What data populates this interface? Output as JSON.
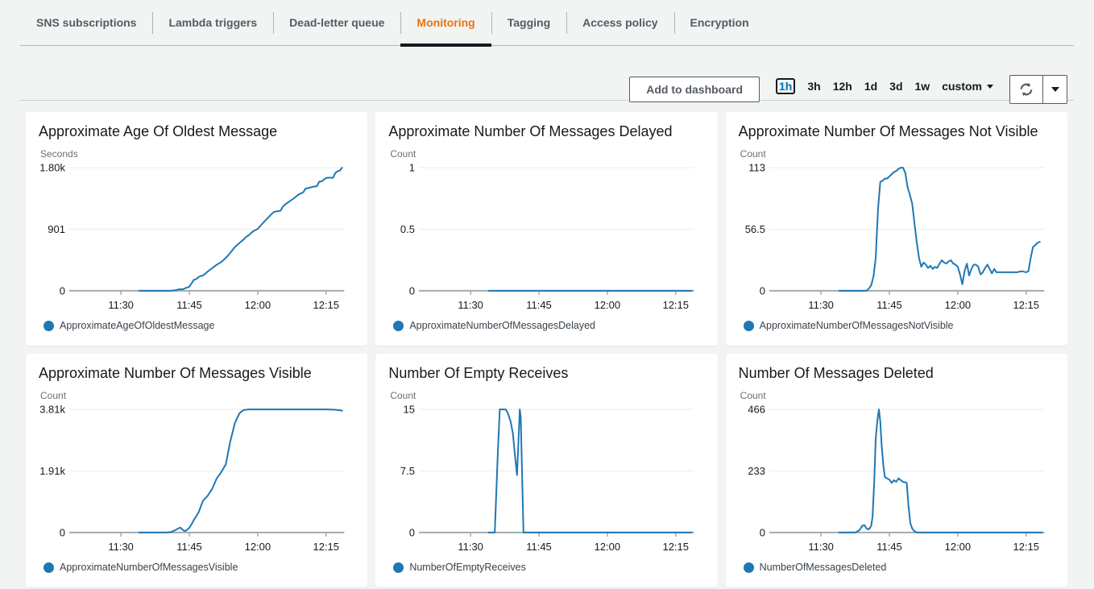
{
  "tabs": [
    {
      "label": "SNS subscriptions",
      "active": false
    },
    {
      "label": "Lambda triggers",
      "active": false
    },
    {
      "label": "Dead-letter queue",
      "active": false
    },
    {
      "label": "Monitoring",
      "active": true
    },
    {
      "label": "Tagging",
      "active": false
    },
    {
      "label": "Access policy",
      "active": false
    },
    {
      "label": "Encryption",
      "active": false
    }
  ],
  "toolbar": {
    "add_to_dashboard_label": "Add to dashboard",
    "time_ranges": [
      {
        "label": "1h",
        "selected": true
      },
      {
        "label": "3h",
        "selected": false
      },
      {
        "label": "12h",
        "selected": false
      },
      {
        "label": "1d",
        "selected": false
      },
      {
        "label": "3d",
        "selected": false
      },
      {
        "label": "1w",
        "selected": false
      }
    ],
    "custom_label": "custom",
    "refresh_icon": "refresh-icon",
    "refresh_caret_icon": "chevron-down-icon"
  },
  "colors": {
    "accent": "#ec7211",
    "line": "#1f77b4",
    "grid": "#e8eaec",
    "baseline": "#a0abae",
    "page_bg": "#f2f3f3",
    "card_bg": "#ffffff"
  },
  "chart_data": [
    {
      "type": "line",
      "title": "Approximate Age Of Oldest Message",
      "ylabel": "Seconds",
      "legend": "ApproximateAgeOfOldestMessage",
      "ylim": [
        0,
        1800
      ],
      "yticks": [
        {
          "label": "1.80k",
          "value": 1800
        },
        {
          "label": "901",
          "value": 901
        },
        {
          "label": "0",
          "value": 0
        }
      ],
      "xlim_minutes_after_11": [
        19,
        79
      ],
      "xticks": [
        {
          "label": "11:30",
          "minute": 30
        },
        {
          "label": "11:45",
          "minute": 45
        },
        {
          "label": "12:00",
          "minute": 60
        },
        {
          "label": "12:15",
          "minute": 75
        }
      ],
      "grid": true,
      "legend_position": "bottom-left",
      "series": [
        [
          34,
          0
        ],
        [
          36,
          0
        ],
        [
          38,
          0
        ],
        [
          40,
          0
        ],
        [
          41,
          0
        ],
        [
          42,
          10
        ],
        [
          43,
          25
        ],
        [
          43.5,
          20
        ],
        [
          44,
          35
        ],
        [
          45,
          60
        ],
        [
          45.5,
          110
        ],
        [
          46,
          160
        ],
        [
          46.5,
          170
        ],
        [
          47,
          200
        ],
        [
          47.5,
          215
        ],
        [
          48,
          225
        ],
        [
          48.5,
          250
        ],
        [
          49,
          280
        ],
        [
          50,
          330
        ],
        [
          51,
          380
        ],
        [
          52,
          420
        ],
        [
          52.5,
          450
        ],
        [
          53,
          480
        ],
        [
          54,
          555
        ],
        [
          55,
          640
        ],
        [
          56,
          700
        ],
        [
          57,
          755
        ],
        [
          57.5,
          790
        ],
        [
          58,
          810
        ],
        [
          59,
          870
        ],
        [
          60,
          905
        ],
        [
          61,
          980
        ],
        [
          62,
          1050
        ],
        [
          63,
          1120
        ],
        [
          63.5,
          1150
        ],
        [
          64,
          1160
        ],
        [
          65,
          1170
        ],
        [
          65.5,
          1230
        ],
        [
          66,
          1260
        ],
        [
          67,
          1310
        ],
        [
          68,
          1355
        ],
        [
          69,
          1410
        ],
        [
          70,
          1440
        ],
        [
          70.5,
          1495
        ],
        [
          71,
          1500
        ],
        [
          72,
          1520
        ],
        [
          72.5,
          1525
        ],
        [
          73,
          1530
        ],
        [
          73.5,
          1595
        ],
        [
          74,
          1600
        ],
        [
          75,
          1650
        ],
        [
          76,
          1655
        ],
        [
          76.5,
          1650
        ],
        [
          77,
          1720
        ],
        [
          77.5,
          1750
        ],
        [
          78,
          1755
        ],
        [
          78.5,
          1800
        ]
      ]
    },
    {
      "type": "line",
      "title": "Approximate Number Of Messages Delayed",
      "ylabel": "Count",
      "legend": "ApproximateNumberOfMessagesDelayed",
      "ylim": [
        0,
        1
      ],
      "yticks": [
        {
          "label": "1",
          "value": 1
        },
        {
          "label": "0.5",
          "value": 0.5
        },
        {
          "label": "0",
          "value": 0
        }
      ],
      "xlim_minutes_after_11": [
        19,
        79
      ],
      "xticks": [
        {
          "label": "11:30",
          "minute": 30
        },
        {
          "label": "11:45",
          "minute": 45
        },
        {
          "label": "12:00",
          "minute": 60
        },
        {
          "label": "12:15",
          "minute": 75
        }
      ],
      "grid": true,
      "legend_position": "bottom-left",
      "series": [
        [
          34,
          0
        ],
        [
          45,
          0
        ],
        [
          55,
          0
        ],
        [
          65,
          0
        ],
        [
          78.5,
          0
        ]
      ]
    },
    {
      "type": "line",
      "title": "Approximate Number Of Messages Not Visible",
      "ylabel": "Count",
      "legend": "ApproximateNumberOfMessagesNotVisible",
      "ylim": [
        0,
        113
      ],
      "yticks": [
        {
          "label": "113",
          "value": 113
        },
        {
          "label": "56.5",
          "value": 56.5
        },
        {
          "label": "0",
          "value": 0
        }
      ],
      "xlim_minutes_after_11": [
        19,
        79
      ],
      "xticks": [
        {
          "label": "11:30",
          "minute": 30
        },
        {
          "label": "11:45",
          "minute": 45
        },
        {
          "label": "12:00",
          "minute": 60
        },
        {
          "label": "12:15",
          "minute": 75
        }
      ],
      "grid": true,
      "legend_position": "bottom-left",
      "series": [
        [
          34,
          0
        ],
        [
          37,
          0
        ],
        [
          40,
          0
        ],
        [
          40.5,
          2
        ],
        [
          41,
          5
        ],
        [
          41.5,
          13
        ],
        [
          42,
          30
        ],
        [
          42.5,
          75
        ],
        [
          43,
          100
        ],
        [
          43.5,
          101
        ],
        [
          44,
          103
        ],
        [
          44.5,
          103
        ],
        [
          45,
          105
        ],
        [
          45.5,
          107
        ],
        [
          46,
          109
        ],
        [
          46.5,
          110
        ],
        [
          47,
          112
        ],
        [
          47.5,
          113
        ],
        [
          48,
          113
        ],
        [
          48.5,
          108
        ],
        [
          49,
          95
        ],
        [
          49.5,
          88
        ],
        [
          50,
          80
        ],
        [
          50.5,
          62
        ],
        [
          51,
          45
        ],
        [
          51.5,
          30
        ],
        [
          52,
          22
        ],
        [
          52.5,
          26
        ],
        [
          53,
          24
        ],
        [
          53.5,
          21
        ],
        [
          54,
          23
        ],
        [
          54.5,
          20
        ],
        [
          55,
          22
        ],
        [
          55.5,
          21
        ],
        [
          56,
          25
        ],
        [
          56.5,
          28
        ],
        [
          57,
          26
        ],
        [
          57.5,
          25
        ],
        [
          58,
          27
        ],
        [
          58.5,
          28
        ],
        [
          59,
          25
        ],
        [
          59.5,
          24
        ],
        [
          60,
          22
        ],
        [
          60.5,
          15
        ],
        [
          61,
          6
        ],
        [
          61.5,
          18
        ],
        [
          62,
          25
        ],
        [
          62.5,
          14
        ],
        [
          63,
          20
        ],
        [
          63.5,
          24
        ],
        [
          64,
          24
        ],
        [
          64.5,
          22
        ],
        [
          65,
          15
        ],
        [
          65.5,
          17
        ],
        [
          66,
          21
        ],
        [
          66.5,
          24
        ],
        [
          67,
          20
        ],
        [
          67.5,
          16
        ],
        [
          68,
          20
        ],
        [
          68.5,
          17
        ],
        [
          69,
          17
        ],
        [
          70,
          17
        ],
        [
          71,
          17
        ],
        [
          72,
          17
        ],
        [
          73,
          17
        ],
        [
          74,
          18
        ],
        [
          75,
          17
        ],
        [
          75.5,
          18
        ],
        [
          76,
          30
        ],
        [
          76.5,
          40
        ],
        [
          77,
          42
        ],
        [
          77.5,
          44
        ],
        [
          78,
          45
        ]
      ]
    },
    {
      "type": "line",
      "title": "Approximate Number Of Messages Visible",
      "ylabel": "Count",
      "legend": "ApproximateNumberOfMessagesVisible",
      "ylim": [
        0,
        3810
      ],
      "yticks": [
        {
          "label": "3.81k",
          "value": 3810
        },
        {
          "label": "1.91k",
          "value": 1905
        },
        {
          "label": "0",
          "value": 0
        }
      ],
      "xlim_minutes_after_11": [
        19,
        79
      ],
      "xticks": [
        {
          "label": "11:30",
          "minute": 30
        },
        {
          "label": "11:45",
          "minute": 45
        },
        {
          "label": "12:00",
          "minute": 60
        },
        {
          "label": "12:15",
          "minute": 75
        }
      ],
      "grid": true,
      "legend_position": "bottom-left",
      "series": [
        [
          34,
          0
        ],
        [
          37,
          0
        ],
        [
          40,
          0
        ],
        [
          41,
          15
        ],
        [
          42,
          80
        ],
        [
          42.5,
          120
        ],
        [
          43,
          155
        ],
        [
          43.5,
          90
        ],
        [
          44,
          45
        ],
        [
          44.5,
          80
        ],
        [
          45,
          150
        ],
        [
          45.5,
          260
        ],
        [
          46,
          390
        ],
        [
          46.5,
          500
        ],
        [
          47,
          615
        ],
        [
          47.5,
          800
        ],
        [
          48,
          980
        ],
        [
          48.5,
          1060
        ],
        [
          49,
          1130
        ],
        [
          49.5,
          1240
        ],
        [
          50,
          1350
        ],
        [
          50.5,
          1510
        ],
        [
          51,
          1670
        ],
        [
          51.5,
          1770
        ],
        [
          52,
          1870
        ],
        [
          52.5,
          1990
        ],
        [
          53,
          2110
        ],
        [
          53.5,
          2470
        ],
        [
          54,
          2830
        ],
        [
          54.5,
          3110
        ],
        [
          55,
          3390
        ],
        [
          55.5,
          3540
        ],
        [
          56,
          3690
        ],
        [
          56.5,
          3750
        ],
        [
          57,
          3795
        ],
        [
          58,
          3810
        ],
        [
          60,
          3810
        ],
        [
          63,
          3810
        ],
        [
          66,
          3810
        ],
        [
          69,
          3810
        ],
        [
          72,
          3810
        ],
        [
          75,
          3810
        ],
        [
          76,
          3808
        ],
        [
          77,
          3800
        ],
        [
          78,
          3785
        ],
        [
          78.5,
          3770
        ]
      ]
    },
    {
      "type": "line",
      "title": "Number Of Empty Receives",
      "ylabel": "Count",
      "legend": "NumberOfEmptyReceives",
      "ylim": [
        0,
        15
      ],
      "yticks": [
        {
          "label": "15",
          "value": 15
        },
        {
          "label": "7.5",
          "value": 7.5
        },
        {
          "label": "0",
          "value": 0
        }
      ],
      "xlim_minutes_after_11": [
        19,
        79
      ],
      "xticks": [
        {
          "label": "11:30",
          "minute": 30
        },
        {
          "label": "11:45",
          "minute": 45
        },
        {
          "label": "12:00",
          "minute": 60
        },
        {
          "label": "12:15",
          "minute": 75
        }
      ],
      "grid": true,
      "legend_position": "bottom-left",
      "series": [
        [
          34,
          0
        ],
        [
          35,
          0
        ],
        [
          35.3,
          0
        ],
        [
          36,
          10
        ],
        [
          36.4,
          15
        ],
        [
          37,
          15
        ],
        [
          37.7,
          15
        ],
        [
          38.2,
          14.5
        ],
        [
          38.8,
          13.5
        ],
        [
          39.3,
          12
        ],
        [
          39.8,
          9
        ],
        [
          40.2,
          7
        ],
        [
          40.5,
          11
        ],
        [
          40.8,
          15
        ],
        [
          41,
          14
        ],
        [
          41.3,
          7
        ],
        [
          41.6,
          0
        ],
        [
          43,
          0
        ],
        [
          50,
          0
        ],
        [
          60,
          0
        ],
        [
          70,
          0
        ],
        [
          78.5,
          0
        ]
      ]
    },
    {
      "type": "line",
      "title": "Number Of Messages Deleted",
      "ylabel": "Count",
      "legend": "NumberOfMessagesDeleted",
      "ylim": [
        0,
        466
      ],
      "yticks": [
        {
          "label": "466",
          "value": 466
        },
        {
          "label": "233",
          "value": 233
        },
        {
          "label": "0",
          "value": 0
        }
      ],
      "xlim_minutes_after_11": [
        19,
        79
      ],
      "xticks": [
        {
          "label": "11:30",
          "minute": 30
        },
        {
          "label": "11:45",
          "minute": 45
        },
        {
          "label": "12:00",
          "minute": 60
        },
        {
          "label": "12:15",
          "minute": 75
        }
      ],
      "grid": true,
      "legend_position": "bottom-left",
      "series": [
        [
          34,
          0
        ],
        [
          36,
          0
        ],
        [
          37.5,
          0
        ],
        [
          38,
          4
        ],
        [
          38.5,
          10
        ],
        [
          39,
          25
        ],
        [
          39.5,
          28
        ],
        [
          40,
          15
        ],
        [
          40.5,
          12
        ],
        [
          41,
          25
        ],
        [
          41.3,
          60
        ],
        [
          41.7,
          200
        ],
        [
          42,
          355
        ],
        [
          42.4,
          430
        ],
        [
          42.7,
          466
        ],
        [
          43,
          420
        ],
        [
          43.3,
          330
        ],
        [
          43.7,
          250
        ],
        [
          44,
          210
        ],
        [
          44.5,
          205
        ],
        [
          45,
          200
        ],
        [
          45.5,
          188
        ],
        [
          46,
          198
        ],
        [
          46.5,
          192
        ],
        [
          47,
          205
        ],
        [
          47.5,
          198
        ],
        [
          48,
          192
        ],
        [
          48.5,
          190
        ],
        [
          48.8,
          188
        ],
        [
          49.2,
          100
        ],
        [
          49.6,
          35
        ],
        [
          50,
          15
        ],
        [
          50.5,
          5
        ],
        [
          51,
          0
        ],
        [
          53,
          0
        ],
        [
          60,
          0
        ],
        [
          70,
          0
        ],
        [
          78.5,
          0
        ]
      ]
    }
  ]
}
